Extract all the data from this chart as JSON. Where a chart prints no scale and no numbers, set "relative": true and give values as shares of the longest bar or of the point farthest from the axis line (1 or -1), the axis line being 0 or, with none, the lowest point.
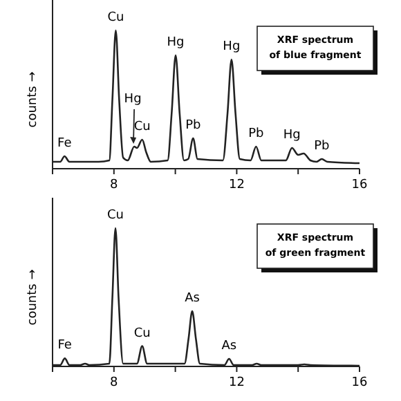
{
  "chart_data": [
    {
      "type": "line",
      "title": "XRF spectrum\nof blue fragment",
      "ylabel": "counts →",
      "relative": true,
      "xlim": [
        6,
        16
      ],
      "xticks": [
        {
          "value": 6,
          "label": null
        },
        8,
        {
          "value": 10,
          "label": null
        },
        12,
        {
          "value": 14,
          "label": null
        },
        16
      ],
      "series": [
        {
          "color": "#222222",
          "x": [
            6.0,
            6.25,
            6.39,
            6.55,
            7.5,
            7.85,
            7.95,
            8.06,
            8.17,
            8.3,
            8.45,
            8.66,
            8.75,
            8.92,
            9.05,
            9.2,
            9.75,
            9.88,
            10.01,
            10.14,
            10.28,
            10.42,
            10.58,
            10.72,
            11.55,
            11.7,
            11.83,
            11.96,
            12.1,
            12.45,
            12.63,
            12.8,
            13.6,
            13.8,
            14.0,
            14.18,
            14.4,
            14.6,
            14.77,
            14.95,
            16.0
          ],
          "values": [
            0.05,
            0.05,
            0.09,
            0.05,
            0.05,
            0.06,
            0.5,
            1.0,
            0.5,
            0.08,
            0.06,
            0.16,
            0.15,
            0.21,
            0.12,
            0.05,
            0.06,
            0.4,
            0.82,
            0.4,
            0.06,
            0.07,
            0.22,
            0.07,
            0.06,
            0.4,
            0.79,
            0.4,
            0.07,
            0.06,
            0.16,
            0.06,
            0.06,
            0.15,
            0.1,
            0.11,
            0.06,
            0.05,
            0.07,
            0.05,
            0.04
          ]
        }
      ],
      "annotations": [
        {
          "text": "Fe",
          "x": 6.39,
          "y": 0.09
        },
        {
          "text": "Cu",
          "x": 8.06,
          "y": 1.0
        },
        {
          "text": "Hg",
          "x": 8.66,
          "y": 0.16
        },
        {
          "text": "Cu",
          "x": 8.92,
          "y": 0.21
        },
        {
          "text": "Hg",
          "x": 10.01,
          "y": 0.82
        },
        {
          "text": "Pb",
          "x": 10.58,
          "y": 0.22
        },
        {
          "text": "Hg",
          "x": 11.83,
          "y": 0.79
        },
        {
          "text": "Pb",
          "x": 12.63,
          "y": 0.16
        },
        {
          "text": "Hg",
          "x": 13.8,
          "y": 0.15
        },
        {
          "text": "Pb",
          "x": 14.77,
          "y": 0.07
        }
      ]
    },
    {
      "type": "line",
      "title": "XRF spectrum\nof green fragment",
      "ylabel": "counts →",
      "relative": true,
      "xlim": [
        6,
        16
      ],
      "xticks": [
        {
          "value": 6,
          "label": null
        },
        8,
        {
          "value": 10,
          "label": null
        },
        12,
        {
          "value": 14,
          "label": null
        },
        16
      ],
      "series": [
        {
          "color": "#222222",
          "x": [
            6.0,
            6.25,
            6.4,
            6.55,
            6.9,
            7.06,
            7.2,
            7.85,
            7.95,
            8.05,
            8.15,
            8.3,
            8.75,
            8.92,
            9.08,
            10.3,
            10.43,
            10.55,
            10.67,
            10.8,
            11.6,
            11.75,
            11.9,
            12.5,
            12.65,
            12.8,
            14.0,
            14.2,
            14.4,
            16.0
          ],
          "values": [
            0.01,
            0.01,
            0.058,
            0.01,
            0.01,
            0.02,
            0.01,
            0.02,
            0.5,
            1.0,
            0.5,
            0.02,
            0.02,
            0.147,
            0.02,
            0.02,
            0.2,
            0.4,
            0.2,
            0.02,
            0.01,
            0.055,
            0.01,
            0.01,
            0.02,
            0.01,
            0.01,
            0.015,
            0.01,
            0.005
          ]
        }
      ],
      "annotations": [
        {
          "text": "Fe",
          "x": 6.4,
          "y": 0.058
        },
        {
          "text": "Cu",
          "x": 8.05,
          "y": 1.0
        },
        {
          "text": "Cu",
          "x": 8.92,
          "y": 0.147
        },
        {
          "text": "As",
          "x": 10.55,
          "y": 0.4
        },
        {
          "text": "As",
          "x": 11.75,
          "y": 0.055
        }
      ]
    }
  ]
}
